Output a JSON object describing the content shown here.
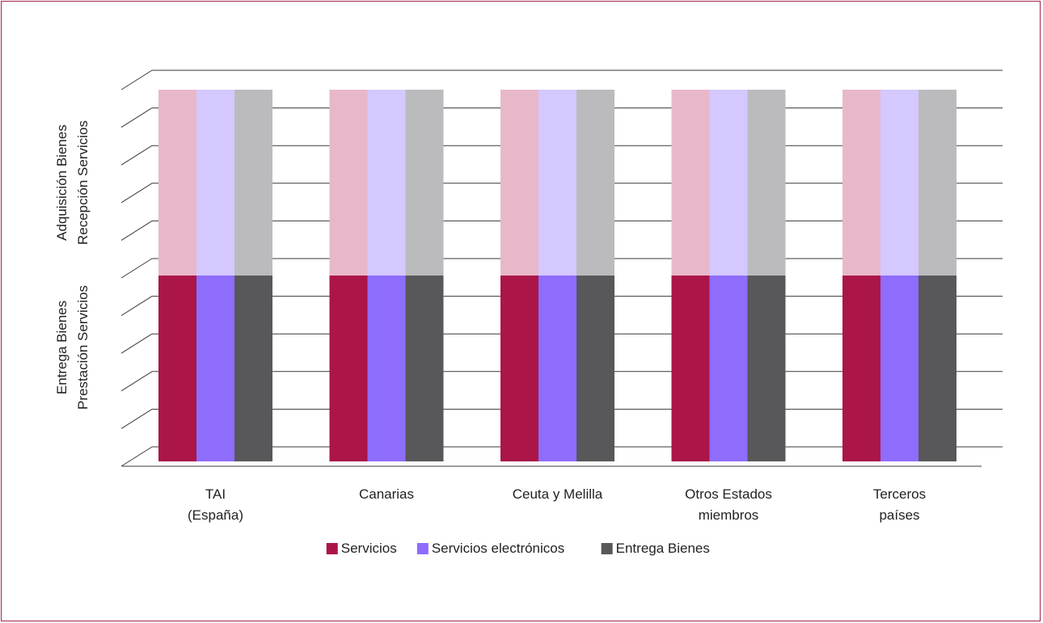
{
  "chart_data": {
    "type": "bar",
    "title": "",
    "categories": [
      {
        "line1": "TAI",
        "line2": "(España)"
      },
      {
        "line1": "Canarias",
        "line2": ""
      },
      {
        "line1": "Ceuta y Melilla",
        "line2": ""
      },
      {
        "line1": "Otros Estados",
        "line2": "miembros"
      },
      {
        "line1": "Terceros",
        "line2": "países"
      }
    ],
    "y_axis_labels": {
      "upper": {
        "line1": "Adquisición Bienes",
        "line2": "Recepción Servicios"
      },
      "lower": {
        "line1": "Entrega Bienes",
        "line2": "Prestación Servicios"
      }
    },
    "ylim": [
      0,
      10
    ],
    "gridlines": 10,
    "grid": true,
    "legend_position": "bottom",
    "series": [
      {
        "name": "Servicios",
        "lower_value": 5,
        "upper_value": 5,
        "color": "#ab1548",
        "upper_color": "#e8b8ca"
      },
      {
        "name": "Servicios electrónicos",
        "lower_value": 5,
        "upper_value": 5,
        "color": "#8e6cfc",
        "upper_color": "#d4c8fe"
      },
      {
        "name": "Entrega Bienes",
        "lower_value": 5,
        "upper_value": 5,
        "color": "#58585a",
        "upper_color": "#bbbbbd"
      }
    ]
  }
}
